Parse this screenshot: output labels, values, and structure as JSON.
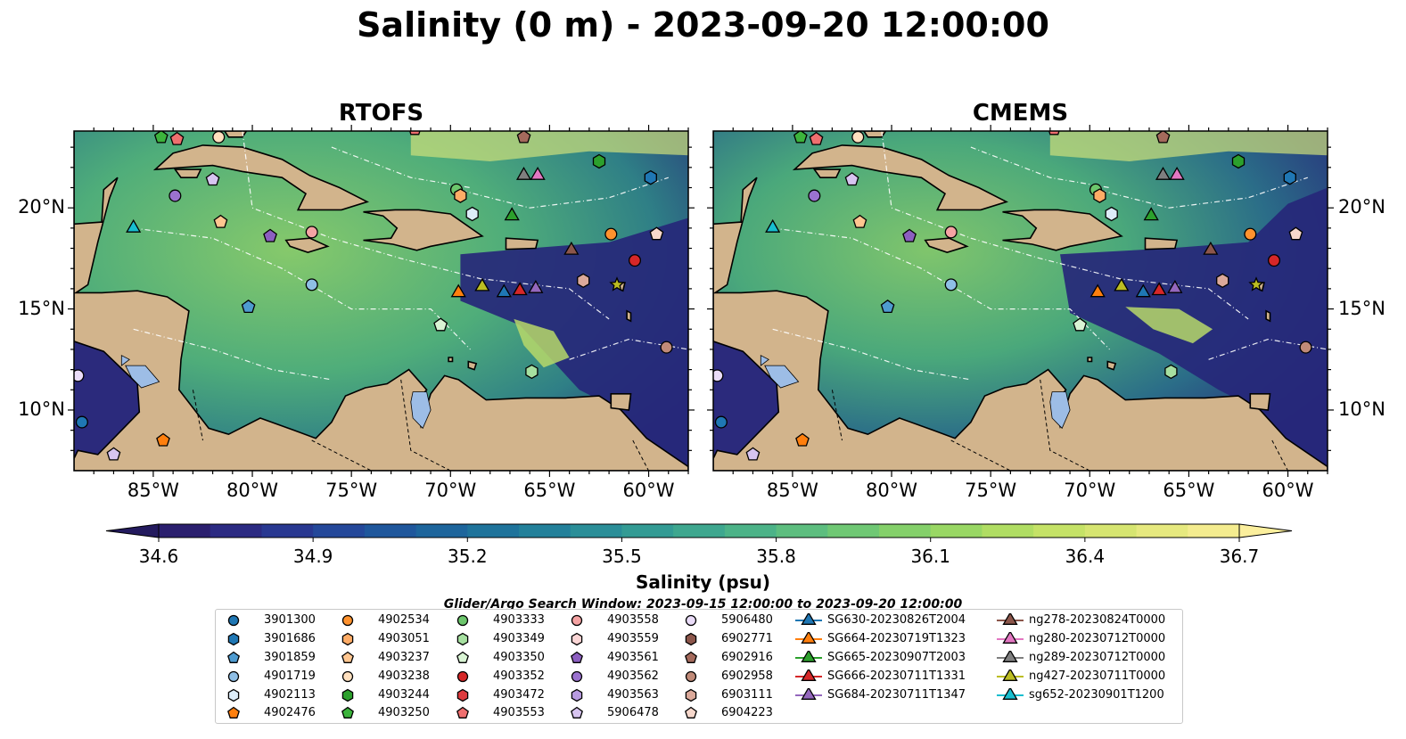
{
  "title": "Salinity (0 m) - 2023-09-20 12:00:00",
  "panels": [
    {
      "name": "RTOFS"
    },
    {
      "name": "CMEMS"
    }
  ],
  "lon_ticks": [
    "85°W",
    "80°W",
    "75°W",
    "70°W",
    "65°W",
    "60°W"
  ],
  "lat_ticks": [
    "20°N",
    "15°N",
    "10°N"
  ],
  "map_extent": {
    "lon": [
      -89,
      -58
    ],
    "lat": [
      7,
      23.8
    ]
  },
  "colorbar": {
    "label": "Salinity (psu)",
    "ticks": [
      "34.6",
      "34.9",
      "35.2",
      "35.5",
      "35.8",
      "36.1",
      "36.4",
      "36.7"
    ],
    "range": [
      34.6,
      36.7
    ],
    "extend": "both",
    "colormap": "haline"
  },
  "search_window": "Glider/Argo Search Window: 2023-09-15 12:00:00 to 2023-09-20 12:00:00",
  "legend": {
    "argo": [
      {
        "label": "3901300",
        "marker": "circle",
        "color": "#1f77b4"
      },
      {
        "label": "3901686",
        "marker": "hexagon",
        "color": "#1f77b4"
      },
      {
        "label": "3901859",
        "marker": "pentagon",
        "color": "#4e9bd0"
      },
      {
        "label": "4901719",
        "marker": "circle",
        "color": "#8fbfe6"
      },
      {
        "label": "4902113",
        "marker": "hexagon",
        "color": "#dcecf8"
      },
      {
        "label": "4902476",
        "marker": "pentagon",
        "color": "#ff7f0e"
      },
      {
        "label": "4902534",
        "marker": "circle",
        "color": "#ff922e"
      },
      {
        "label": "4903051",
        "marker": "hexagon",
        "color": "#ffac66"
      },
      {
        "label": "4903237",
        "marker": "pentagon",
        "color": "#ffc690"
      },
      {
        "label": "4903238",
        "marker": "circle",
        "color": "#ffe0bf"
      },
      {
        "label": "4903244",
        "marker": "hexagon",
        "color": "#2ca02c"
      },
      {
        "label": "4903250",
        "marker": "pentagon",
        "color": "#3cb43c"
      },
      {
        "label": "4903333",
        "marker": "circle",
        "color": "#6cc66c"
      },
      {
        "label": "4903349",
        "marker": "hexagon",
        "color": "#a6e0a0"
      },
      {
        "label": "4903350",
        "marker": "pentagon",
        "color": "#d9f4d4"
      },
      {
        "label": "4903352",
        "marker": "circle",
        "color": "#d62728"
      },
      {
        "label": "4903472",
        "marker": "hexagon",
        "color": "#dd3b3e"
      },
      {
        "label": "4903553",
        "marker": "pentagon",
        "color": "#ef6f6f"
      },
      {
        "label": "4903558",
        "marker": "circle",
        "color": "#f5a3a3"
      },
      {
        "label": "4903559",
        "marker": "hexagon",
        "color": "#fbd6d6"
      },
      {
        "label": "4903561",
        "marker": "pentagon",
        "color": "#8c5fc0"
      },
      {
        "label": "4903562",
        "marker": "circle",
        "color": "#9b72cf"
      },
      {
        "label": "4903563",
        "marker": "hexagon",
        "color": "#b89be0"
      },
      {
        "label": "5906478",
        "marker": "pentagon",
        "color": "#d7c4f0"
      },
      {
        "label": "5906480",
        "marker": "circle",
        "color": "#eadcf8"
      },
      {
        "label": "6902771",
        "marker": "hexagon",
        "color": "#8c564b"
      },
      {
        "label": "6902916",
        "marker": "pentagon",
        "color": "#a46a5c"
      },
      {
        "label": "6902958",
        "marker": "circle",
        "color": "#c08a78"
      },
      {
        "label": "6903111",
        "marker": "hexagon",
        "color": "#dba99a"
      },
      {
        "label": "6904223",
        "marker": "pentagon",
        "color": "#f7d8cc"
      }
    ],
    "gliders": [
      {
        "label": "SG630-20230826T2004",
        "color": "#1f77b4"
      },
      {
        "label": "SG664-20230719T1323",
        "color": "#ff7f0e"
      },
      {
        "label": "SG665-20230907T2003",
        "color": "#2ca02c"
      },
      {
        "label": "SG666-20230711T1331",
        "color": "#d62728"
      },
      {
        "label": "SG684-20230711T1347",
        "color": "#9467bd"
      },
      {
        "label": "ng278-20230824T0000",
        "color": "#8c564b"
      },
      {
        "label": "ng280-20230712T0000",
        "color": "#e377c2"
      },
      {
        "label": "ng289-20230712T0000",
        "color": "#7f7f7f"
      },
      {
        "label": "ng427-20230711T0000",
        "color": "#bcbd22"
      },
      {
        "label": "sg652-20230901T1200",
        "color": "#17becf"
      }
    ]
  },
  "map_markers": [
    {
      "lon": -84.6,
      "lat": 23.5,
      "marker": "pentagon",
      "color": "#3cb43c"
    },
    {
      "lon": -83.8,
      "lat": 23.4,
      "marker": "pentagon",
      "color": "#ef6f6f"
    },
    {
      "lon": -81.7,
      "lat": 23.5,
      "marker": "circle",
      "color": "#ffe0bf"
    },
    {
      "lon": -82.0,
      "lat": 21.4,
      "marker": "pentagon",
      "color": "#d7c4f0"
    },
    {
      "lon": -83.9,
      "lat": 20.6,
      "marker": "circle",
      "color": "#9b72cf"
    },
    {
      "lon": -86.0,
      "lat": 19.0,
      "marker": "triangle",
      "color": "#17becf"
    },
    {
      "lon": -81.6,
      "lat": 19.3,
      "marker": "pentagon",
      "color": "#ffc690"
    },
    {
      "lon": -79.1,
      "lat": 18.6,
      "marker": "pentagon",
      "color": "#8c5fc0"
    },
    {
      "lon": -77.0,
      "lat": 18.8,
      "marker": "circle",
      "color": "#f5a3a3"
    },
    {
      "lon": -77.0,
      "lat": 16.2,
      "marker": "circle",
      "color": "#8fbfe6"
    },
    {
      "lon": -80.2,
      "lat": 15.1,
      "marker": "pentagon",
      "color": "#4e9bd0"
    },
    {
      "lon": -71.8,
      "lat": 23.9,
      "marker": "pentagon",
      "color": "#ef6f6f"
    },
    {
      "lon": -69.7,
      "lat": 20.9,
      "marker": "circle",
      "color": "#6cc66c"
    },
    {
      "lon": -69.5,
      "lat": 20.6,
      "marker": "hexagon",
      "color": "#ffac66"
    },
    {
      "lon": -68.9,
      "lat": 19.7,
      "marker": "hexagon",
      "color": "#dcecf8"
    },
    {
      "lon": -66.3,
      "lat": 23.5,
      "marker": "pentagon",
      "color": "#a46a5c"
    },
    {
      "lon": -66.3,
      "lat": 21.6,
      "marker": "triangle",
      "color": "#7f7f7f"
    },
    {
      "lon": -65.6,
      "lat": 21.6,
      "marker": "triangle",
      "color": "#e377c2"
    },
    {
      "lon": -62.5,
      "lat": 22.3,
      "marker": "hexagon",
      "color": "#2ca02c"
    },
    {
      "lon": -59.9,
      "lat": 21.5,
      "marker": "hexagon",
      "color": "#1f77b4"
    },
    {
      "lon": -66.9,
      "lat": 19.6,
      "marker": "triangle",
      "color": "#2ca02c"
    },
    {
      "lon": -61.9,
      "lat": 18.7,
      "marker": "circle",
      "color": "#ff922e"
    },
    {
      "lon": -59.6,
      "lat": 18.7,
      "marker": "pentagon",
      "color": "#f7d8cc"
    },
    {
      "lon": -63.9,
      "lat": 17.9,
      "marker": "triangle",
      "color": "#8c564b"
    },
    {
      "lon": -60.7,
      "lat": 17.4,
      "marker": "circle",
      "color": "#d62728"
    },
    {
      "lon": -69.6,
      "lat": 15.8,
      "marker": "triangle",
      "color": "#ff7f0e"
    },
    {
      "lon": -68.4,
      "lat": 16.1,
      "marker": "triangle",
      "color": "#bcbd22"
    },
    {
      "lon": -67.3,
      "lat": 15.8,
      "marker": "triangle",
      "color": "#1f77b4"
    },
    {
      "lon": -66.5,
      "lat": 15.9,
      "marker": "triangle",
      "color": "#d62728"
    },
    {
      "lon": -65.7,
      "lat": 16.0,
      "marker": "triangle",
      "color": "#9467bd"
    },
    {
      "lon": -63.3,
      "lat": 16.4,
      "marker": "hexagon",
      "color": "#dba99a"
    },
    {
      "lon": -61.6,
      "lat": 16.2,
      "marker": "star",
      "color": "#bcbd22"
    },
    {
      "lon": -70.5,
      "lat": 14.2,
      "marker": "pentagon",
      "color": "#d9f4d4"
    },
    {
      "lon": -65.9,
      "lat": 11.9,
      "marker": "hexagon",
      "color": "#a6e0a0"
    },
    {
      "lon": -59.1,
      "lat": 13.1,
      "marker": "circle",
      "color": "#c08a78"
    },
    {
      "lon": -88.8,
      "lat": 11.7,
      "marker": "circle",
      "color": "#eadcf8"
    },
    {
      "lon": -88.6,
      "lat": 9.4,
      "marker": "circle",
      "color": "#1f77b4"
    },
    {
      "lon": -84.5,
      "lat": 8.5,
      "marker": "pentagon",
      "color": "#ff7f0e"
    },
    {
      "lon": -87.0,
      "lat": 7.8,
      "marker": "pentagon",
      "color": "#d7c4f0"
    }
  ]
}
